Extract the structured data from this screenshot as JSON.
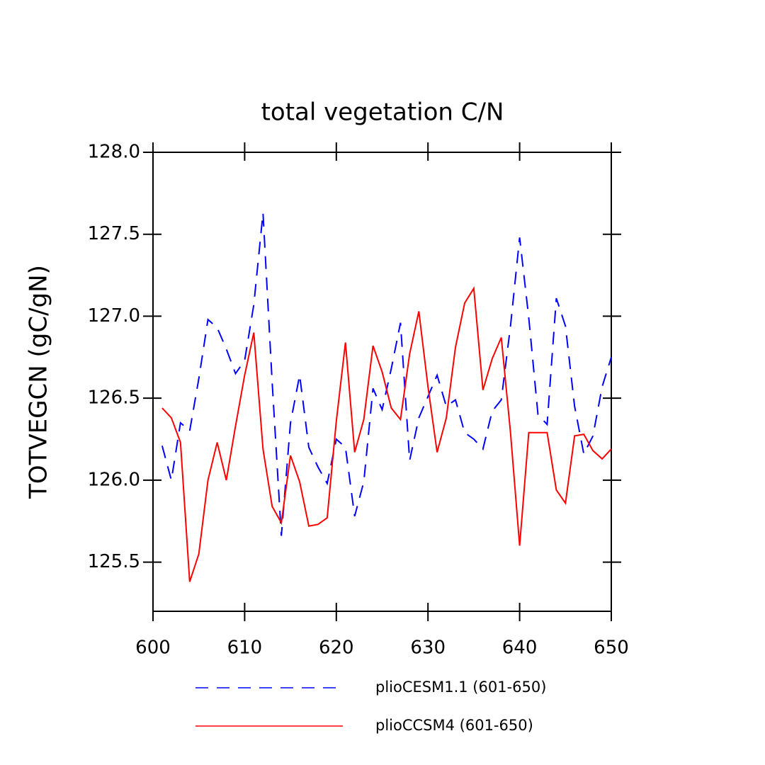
{
  "chart_data": {
    "type": "line",
    "title": "total vegetation C/N",
    "ylabel": "TOTVEGCN  (gC/gN)",
    "x": [
      601,
      602,
      603,
      604,
      605,
      606,
      607,
      608,
      609,
      610,
      611,
      612,
      613,
      614,
      615,
      616,
      617,
      618,
      619,
      620,
      621,
      622,
      623,
      624,
      625,
      626,
      627,
      628,
      629,
      630,
      631,
      632,
      633,
      634,
      635,
      636,
      637,
      638,
      639,
      640,
      641,
      642,
      643,
      644,
      645,
      646,
      647,
      648,
      649,
      650
    ],
    "series": [
      {
        "name": "plioCESM1.1 (601-650)",
        "color": "#0000ff",
        "dash": true,
        "values": [
          126.21,
          126.0,
          126.35,
          126.3,
          126.62,
          126.98,
          126.93,
          126.8,
          126.65,
          126.73,
          127.07,
          127.63,
          126.6,
          125.66,
          126.35,
          126.64,
          126.2,
          126.08,
          125.98,
          126.25,
          126.2,
          125.78,
          125.99,
          126.56,
          126.43,
          126.68,
          126.96,
          126.12,
          126.38,
          126.51,
          126.64,
          126.45,
          126.49,
          126.29,
          126.25,
          126.19,
          126.42,
          126.49,
          126.94,
          127.48,
          126.99,
          126.4,
          126.34,
          127.11,
          126.94,
          126.45,
          126.16,
          126.27,
          126.57,
          126.75
        ]
      },
      {
        "name": "plioCCSM4 (601-650)",
        "color": "#ff0000",
        "dash": false,
        "values": [
          126.44,
          126.38,
          126.23,
          125.38,
          125.55,
          126.0,
          126.23,
          126.0,
          126.33,
          126.64,
          126.9,
          126.19,
          125.84,
          125.74,
          126.15,
          125.99,
          125.72,
          125.73,
          125.77,
          126.36,
          126.84,
          126.17,
          126.37,
          126.82,
          126.66,
          126.44,
          126.37,
          126.77,
          127.03,
          126.57,
          126.17,
          126.38,
          126.81,
          127.08,
          127.17,
          126.55,
          126.74,
          126.87,
          126.29,
          125.6,
          126.29,
          126.29,
          126.29,
          125.94,
          125.86,
          126.27,
          126.28,
          126.18,
          126.13,
          126.19
        ]
      }
    ],
    "xlim": [
      600,
      650
    ],
    "xticks": [
      600,
      610,
      620,
      630,
      640,
      650
    ],
    "ylim": [
      125.2,
      128.0
    ],
    "yticks": [
      125.5,
      {
        "value": 126,
        "label": "126.0"
      },
      126.5,
      {
        "value": 127,
        "label": "127.0"
      },
      127.5,
      {
        "value": 128,
        "label": "128.0"
      }
    ]
  }
}
